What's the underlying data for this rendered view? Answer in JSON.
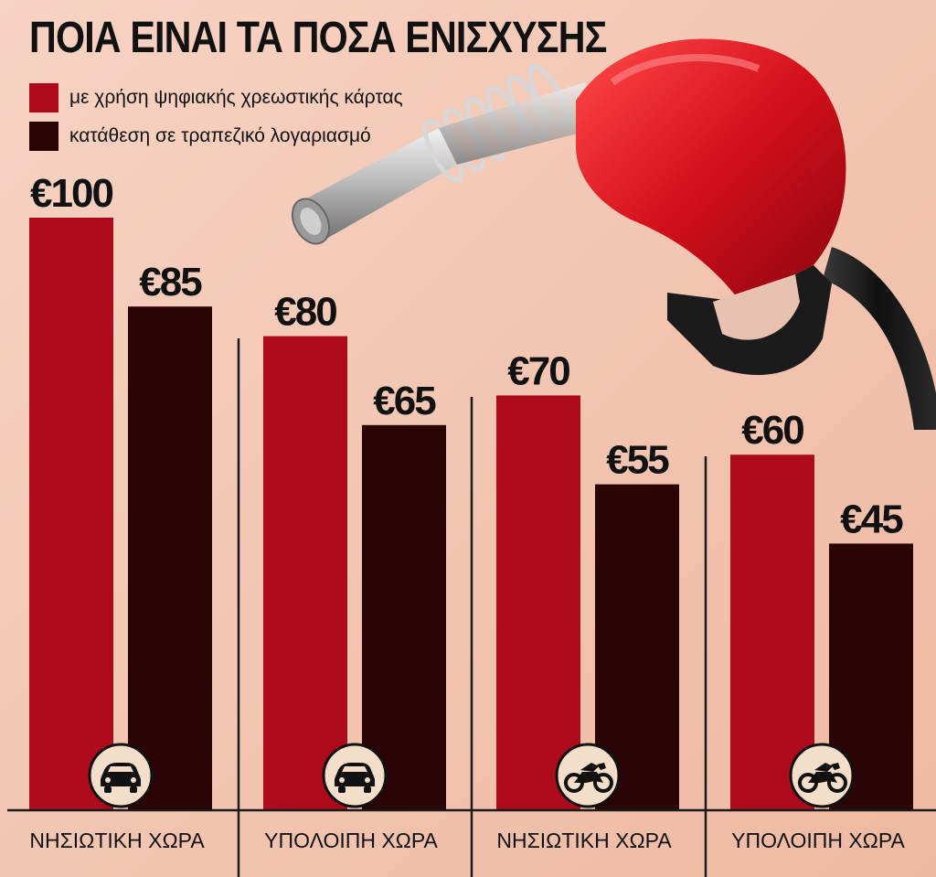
{
  "chart_data": {
    "type": "bar",
    "title": "ΠΟΙΑ ΕΙΝΑΙ ΤΑ ΠΟΣΑ ΕΝΙΣΧΥΣΗΣ",
    "categories": [
      "ΝΗΣΙΩΤΙΚΗ ΧΩΡΑ",
      "ΥΠΟΛΟΙΠΗ ΧΩΡΑ",
      "ΝΗΣΙΩΤΙΚΗ ΧΩΡΑ",
      "ΥΠΟΛΟΙΠΗ ΧΩΡΑ"
    ],
    "category_icons": [
      "car-icon",
      "car-icon",
      "motorcycle-icon",
      "motorcycle-icon"
    ],
    "series": [
      {
        "name": "με χρήση ψηφιακής χρεωστικής κάρτας",
        "color": "#ad0b1b",
        "values": [
          100,
          80,
          70,
          60
        ],
        "value_labels": [
          "€100",
          "€80",
          "€70",
          "€60"
        ]
      },
      {
        "name": "κατάθεση σε τραπεζικό λογαριασμό",
        "color": "#2b0406",
        "values": [
          85,
          65,
          55,
          45
        ],
        "value_labels": [
          "€85",
          "€65",
          "€55",
          "€45"
        ]
      }
    ],
    "xlabel": "",
    "ylabel": "",
    "ylim": [
      0,
      100
    ],
    "grid": false,
    "legend_position": "top-left"
  }
}
